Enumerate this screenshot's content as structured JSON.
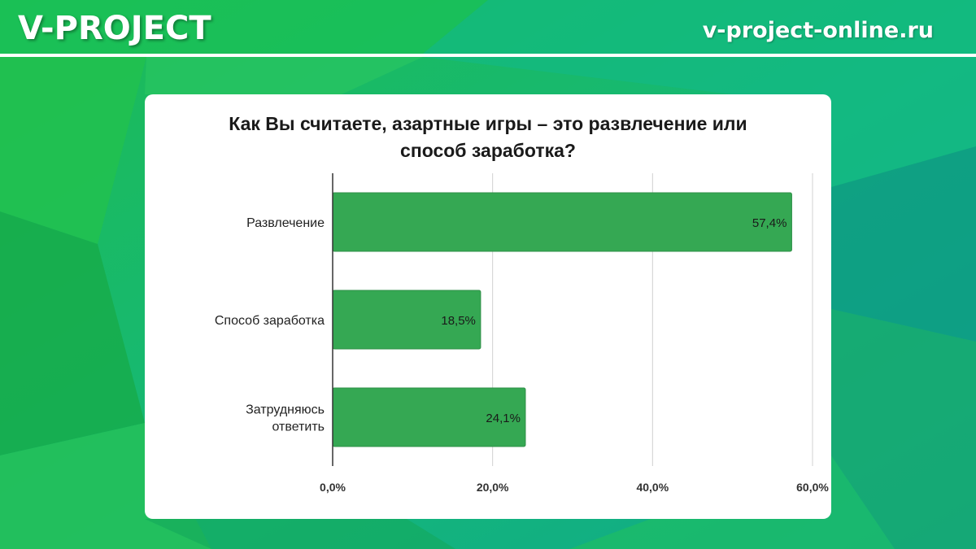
{
  "header": {
    "brand": "V-PROJECT",
    "site": "v-project-online.ru"
  },
  "colors": {
    "bar": "#35a853",
    "bar_stroke": "#2f8f47",
    "grid": "#d0d0d0",
    "axis": "#333333",
    "text": "#222222"
  },
  "chart_data": {
    "type": "bar",
    "orientation": "horizontal",
    "title_lines": [
      "Как Вы считаете, азартные игры – это развлечение или",
      "способ заработка?"
    ],
    "categories": [
      [
        "Развлечение"
      ],
      [
        "Способ заработка"
      ],
      [
        "Затрудняюсь",
        "ответить"
      ]
    ],
    "values": [
      57.4,
      18.5,
      24.1
    ],
    "value_labels": [
      "57,4%",
      "18,5%",
      "24,1%"
    ],
    "xlim": [
      0,
      60
    ],
    "xticks": [
      0,
      20,
      40,
      60
    ],
    "xtick_labels": [
      "0,0%",
      "20,0%",
      "40,0%",
      "60,0%"
    ],
    "grid": true,
    "legend": "none"
  }
}
